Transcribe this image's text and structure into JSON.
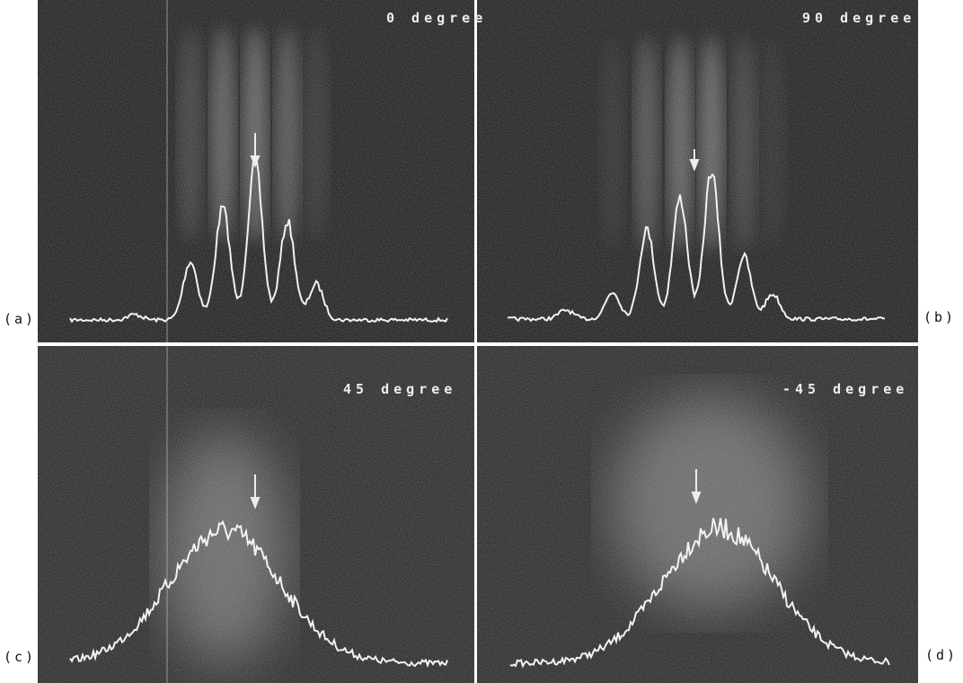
{
  "panels": [
    {
      "label": "(a)",
      "title": "0 degree"
    },
    {
      "label": "(b)",
      "title": "90 degree"
    },
    {
      "label": "(c)",
      "title": "45 degree"
    },
    {
      "label": "(d)",
      "title": "-45 degree"
    }
  ]
}
